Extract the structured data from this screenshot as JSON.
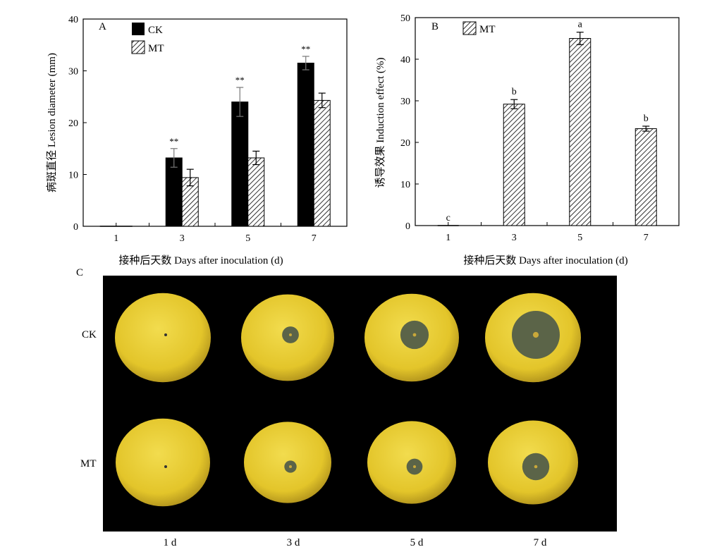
{
  "chart_data": [
    {
      "type": "bar",
      "panel_label": "A",
      "categories": [
        "1",
        "3",
        "5",
        "7"
      ],
      "series": [
        {
          "name": "CK",
          "values": [
            0,
            13.2,
            24.0,
            31.5
          ],
          "errors": [
            0,
            1.8,
            2.8,
            1.3
          ],
          "fill": "solid",
          "color": "#000000"
        },
        {
          "name": "MT",
          "values": [
            0,
            9.4,
            13.2,
            24.3
          ],
          "errors": [
            0,
            1.6,
            1.3,
            1.4
          ],
          "fill": "hatch",
          "color": "#000000"
        }
      ],
      "significance": [
        "",
        "**",
        "**",
        "**"
      ],
      "xlabel": "接种后天数 Days after inoculation (d)",
      "ylabel": "病斑直径 Lesion diameter (mm)",
      "ylim": [
        0,
        40
      ],
      "yticks": [
        "0",
        "10",
        "20",
        "30",
        "40"
      ],
      "legend_position": "top-left",
      "grid": false
    },
    {
      "type": "bar",
      "panel_label": "B",
      "categories": [
        "1",
        "3",
        "5",
        "7"
      ],
      "series": [
        {
          "name": "MT",
          "values": [
            0,
            29.2,
            45.0,
            23.3
          ],
          "errors": [
            0,
            1.1,
            1.5,
            0.6
          ],
          "fill": "hatch",
          "color": "#000000"
        }
      ],
      "significance_letters": [
        "c",
        "b",
        "a",
        "b"
      ],
      "xlabel": "接种后天数 Days after inoculation (d)",
      "ylabel": "诱导效果 Induction effect (%)",
      "ylim": [
        0,
        50
      ],
      "yticks": [
        "0",
        "10",
        "20",
        "30",
        "40",
        "50"
      ],
      "legend_position": "top-left",
      "grid": false
    }
  ],
  "photo_panel": {
    "panel_label": "C",
    "rows": [
      "CK",
      "MT"
    ],
    "columns": [
      "1 d",
      "3 d",
      "5 d",
      "7 d"
    ],
    "background_color": "#000000",
    "fruit_color": "#e3c52a",
    "lesion_color": "#5b6448",
    "lesion_sizes": [
      [
        0,
        0.18,
        0.3,
        0.5
      ],
      [
        0,
        0.14,
        0.18,
        0.3
      ]
    ]
  }
}
